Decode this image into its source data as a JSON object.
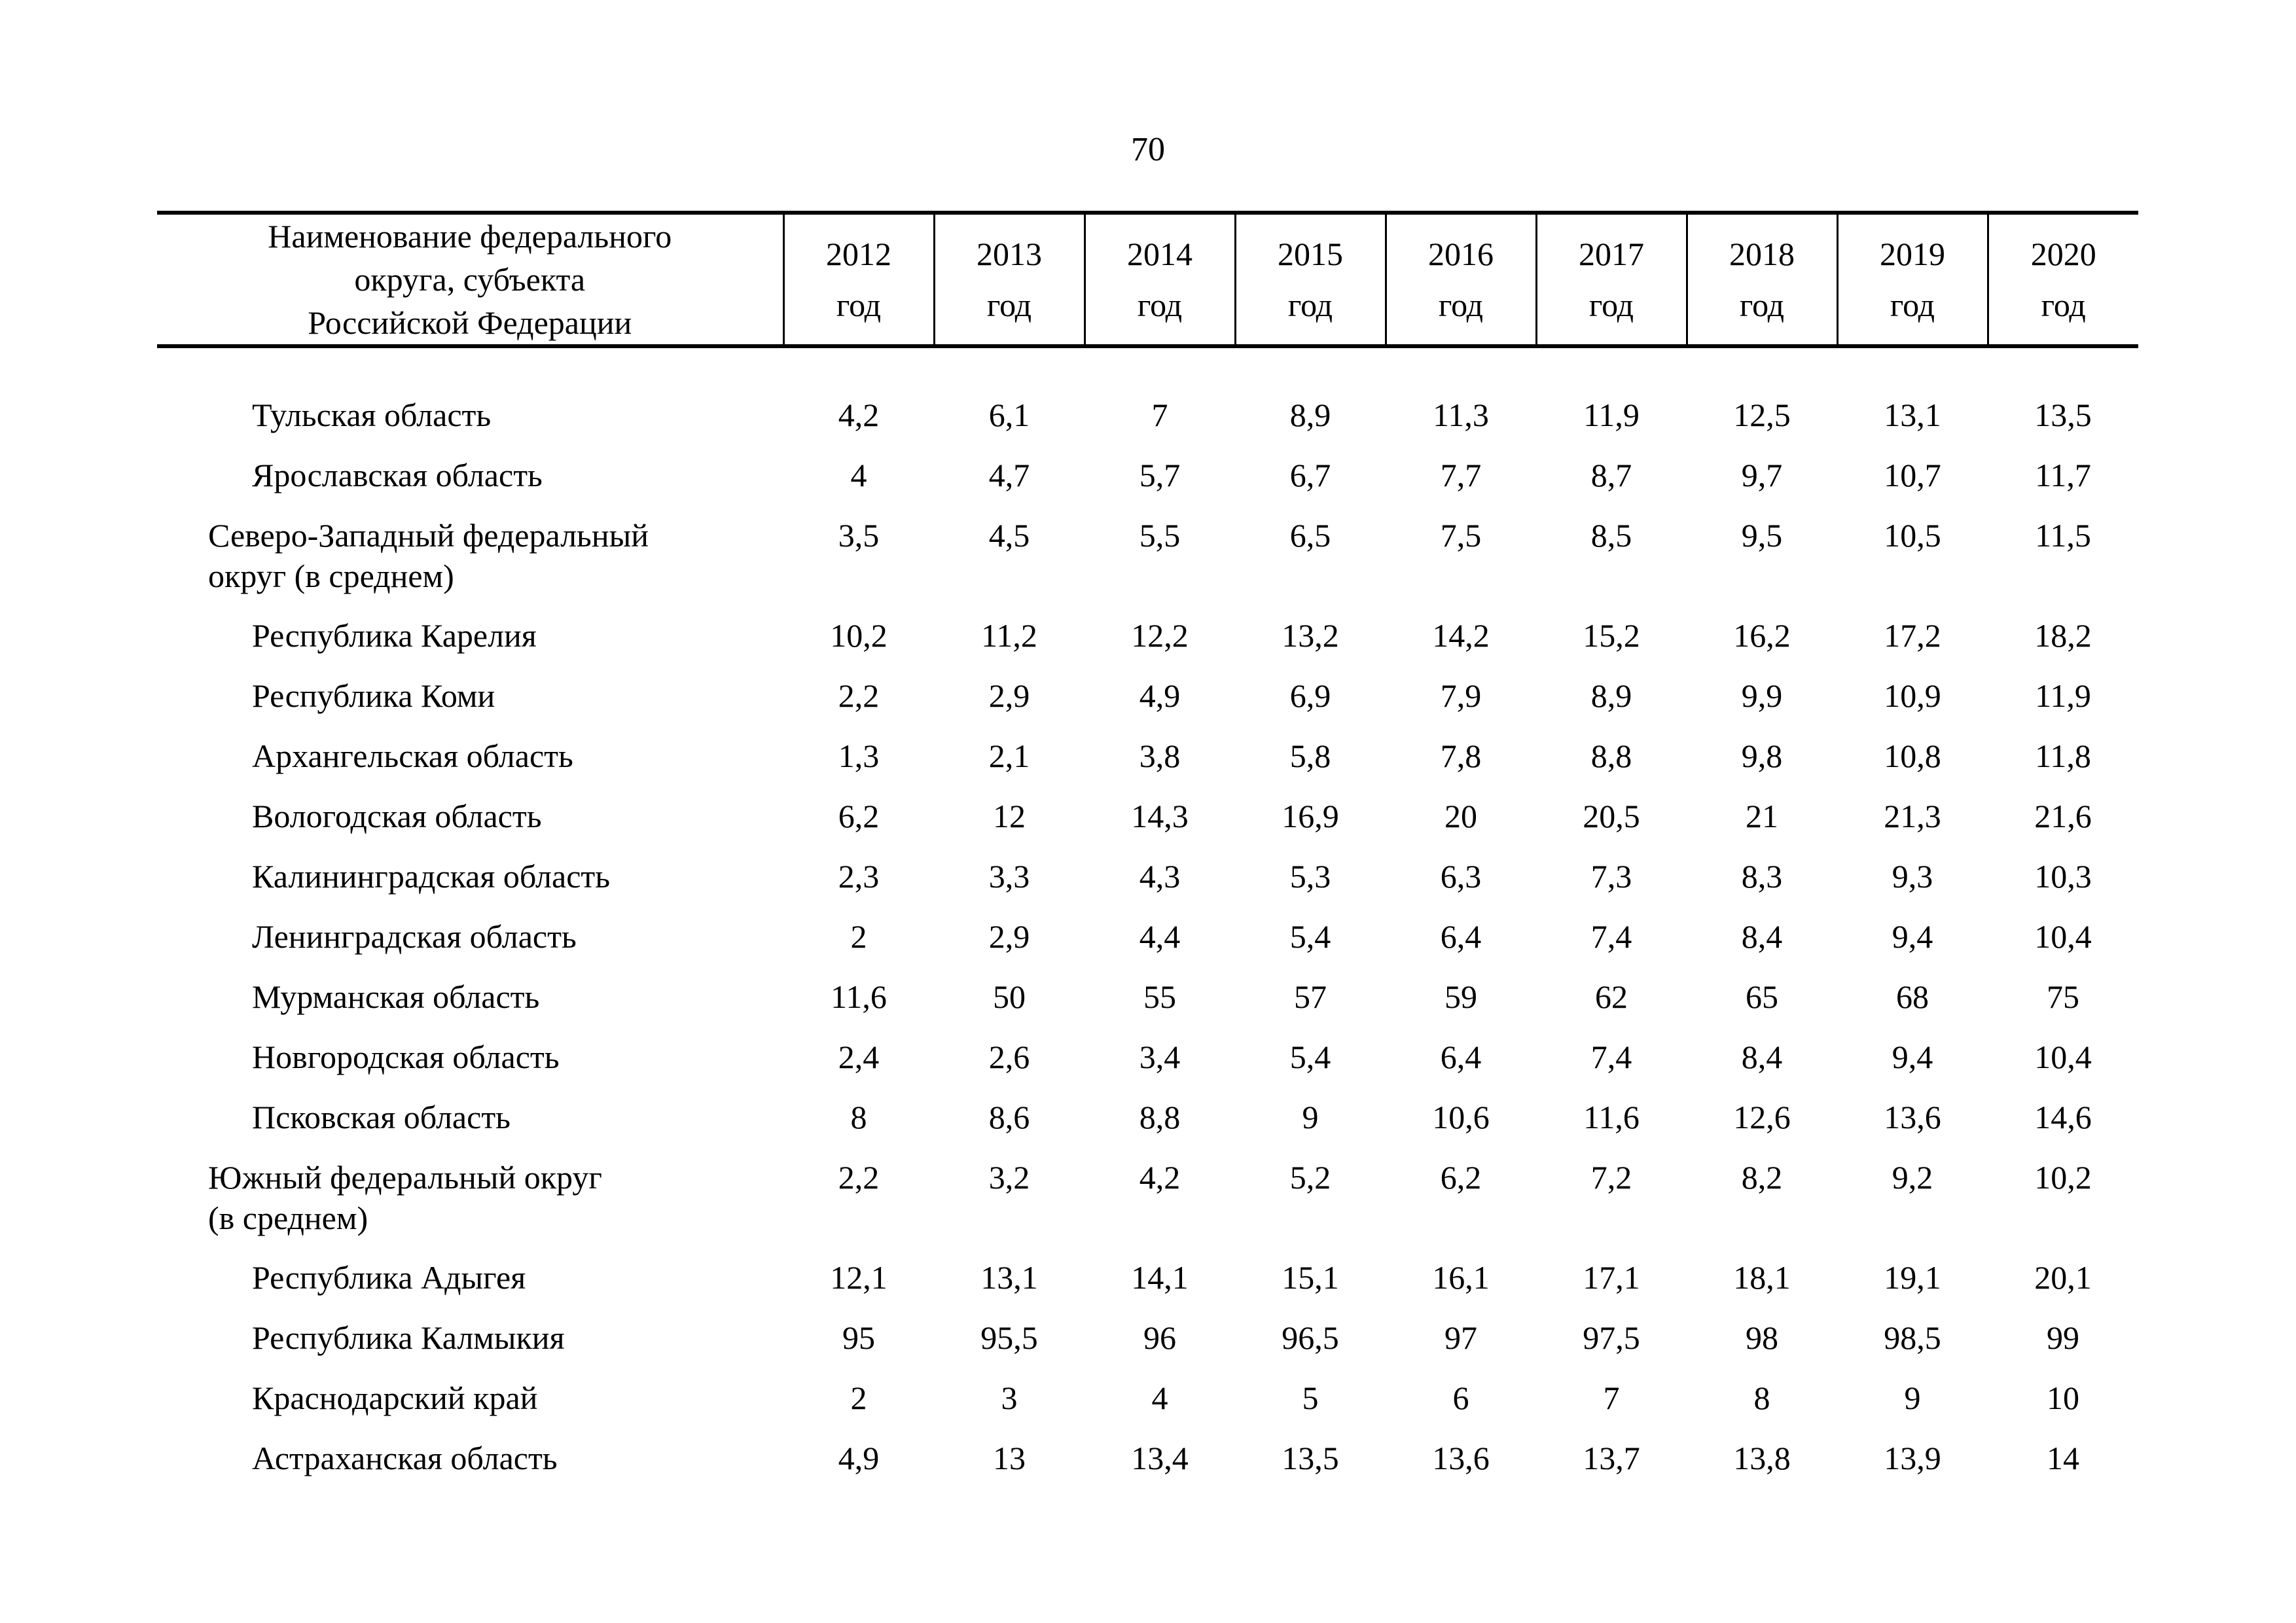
{
  "page": {
    "number": "70"
  },
  "table": {
    "header": {
      "name_column": "Наименование федерального\nокруга, субъекта\nРоссийской Федерации",
      "years": [
        "2012",
        "2013",
        "2014",
        "2015",
        "2016",
        "2017",
        "2018",
        "2019",
        "2020"
      ],
      "year_suffix": "год"
    },
    "rows": [
      {
        "label": "Тульская область",
        "indent": "region",
        "values": [
          "4,2",
          "6,1",
          "7",
          "8,9",
          "11,3",
          "11,9",
          "12,5",
          "13,1",
          "13,5"
        ]
      },
      {
        "label": "Ярославская область",
        "indent": "region",
        "values": [
          "4",
          "4,7",
          "5,7",
          "6,7",
          "7,7",
          "8,7",
          "9,7",
          "10,7",
          "11,7"
        ]
      },
      {
        "label": "Северо-Западный  федеральный\nокруг (в среднем)",
        "indent": "district",
        "values": [
          "3,5",
          "4,5",
          "5,5",
          "6,5",
          "7,5",
          "8,5",
          "9,5",
          "10,5",
          "11,5"
        ]
      },
      {
        "label": "Республика Карелия",
        "indent": "region",
        "values": [
          "10,2",
          "11,2",
          "12,2",
          "13,2",
          "14,2",
          "15,2",
          "16,2",
          "17,2",
          "18,2"
        ]
      },
      {
        "label": "Республика Коми",
        "indent": "region",
        "values": [
          "2,2",
          "2,9",
          "4,9",
          "6,9",
          "7,9",
          "8,9",
          "9,9",
          "10,9",
          "11,9"
        ]
      },
      {
        "label": "Архангельская область",
        "indent": "region",
        "values": [
          "1,3",
          "2,1",
          "3,8",
          "5,8",
          "7,8",
          "8,8",
          "9,8",
          "10,8",
          "11,8"
        ]
      },
      {
        "label": "Вологодская область",
        "indent": "region",
        "values": [
          "6,2",
          "12",
          "14,3",
          "16,9",
          "20",
          "20,5",
          "21",
          "21,3",
          "21,6"
        ]
      },
      {
        "label": "Калининградская область",
        "indent": "region",
        "values": [
          "2,3",
          "3,3",
          "4,3",
          "5,3",
          "6,3",
          "7,3",
          "8,3",
          "9,3",
          "10,3"
        ]
      },
      {
        "label": "Ленинградская область",
        "indent": "region",
        "values": [
          "2",
          "2,9",
          "4,4",
          "5,4",
          "6,4",
          "7,4",
          "8,4",
          "9,4",
          "10,4"
        ]
      },
      {
        "label": "Мурманская область",
        "indent": "region",
        "values": [
          "11,6",
          "50",
          "55",
          "57",
          "59",
          "62",
          "65",
          "68",
          "75"
        ]
      },
      {
        "label": "Новгородская область",
        "indent": "region",
        "values": [
          "2,4",
          "2,6",
          "3,4",
          "5,4",
          "6,4",
          "7,4",
          "8,4",
          "9,4",
          "10,4"
        ]
      },
      {
        "label": "Псковская область",
        "indent": "region",
        "values": [
          "8",
          "8,6",
          "8,8",
          "9",
          "10,6",
          "11,6",
          "12,6",
          "13,6",
          "14,6"
        ]
      },
      {
        "label": "Южный  федеральный округ\n(в среднем)",
        "indent": "district",
        "values": [
          "2,2",
          "3,2",
          "4,2",
          "5,2",
          "6,2",
          "7,2",
          "8,2",
          "9,2",
          "10,2"
        ]
      },
      {
        "label": "Республика Адыгея",
        "indent": "region",
        "values": [
          "12,1",
          "13,1",
          "14,1",
          "15,1",
          "16,1",
          "17,1",
          "18,1",
          "19,1",
          "20,1"
        ]
      },
      {
        "label": "Республика Калмыкия",
        "indent": "region",
        "values": [
          "95",
          "95,5",
          "96",
          "96,5",
          "97",
          "97,5",
          "98",
          "98,5",
          "99"
        ]
      },
      {
        "label": "Краснодарский край",
        "indent": "region",
        "values": [
          "2",
          "3",
          "4",
          "5",
          "6",
          "7",
          "8",
          "9",
          "10"
        ]
      },
      {
        "label": "Астраханская область",
        "indent": "region",
        "values": [
          "4,9",
          "13",
          "13,4",
          "13,5",
          "13,6",
          "13,7",
          "13,8",
          "13,9",
          "14"
        ]
      }
    ]
  }
}
